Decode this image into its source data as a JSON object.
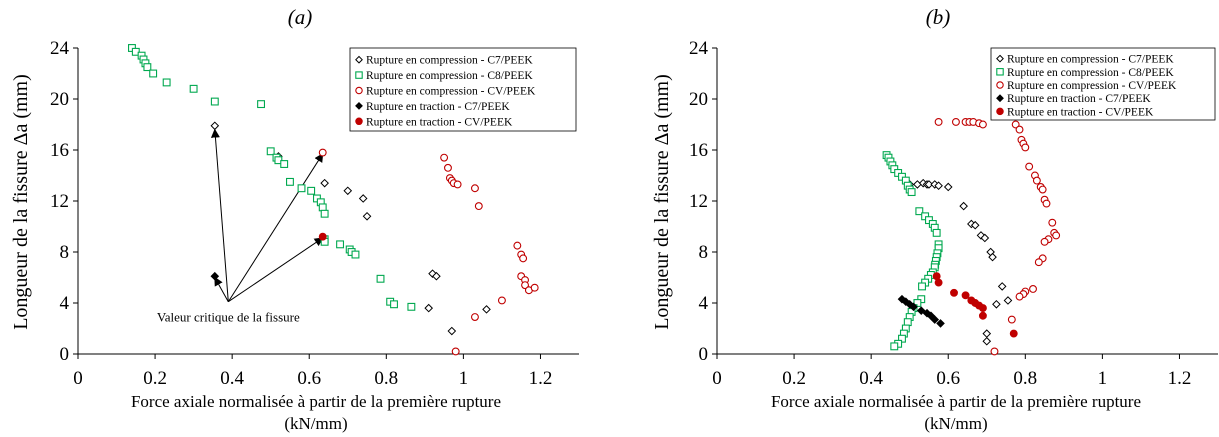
{
  "chart_data": [
    {
      "type": "scatter",
      "panel_label": "(a)",
      "ylabel": "Longueur de la fissure Δa (mm)",
      "xlabel_line1": "Force axiale normalisée à partir de la première rupture",
      "xlabel_line2": "(kN/mm)",
      "xlim": [
        0,
        1.3
      ],
      "ylim": [
        0,
        24
      ],
      "xticks": [
        0,
        0.2,
        0.4,
        0.6,
        0.8,
        1,
        1.2
      ],
      "xtick_labels": [
        "0",
        "0.2",
        "0.4",
        "0.6",
        "0.8",
        "1",
        "1.2"
      ],
      "yticks": [
        0,
        4,
        8,
        12,
        16,
        20,
        24
      ],
      "ytick_labels": [
        "0",
        "4",
        "8",
        "12",
        "16",
        "20",
        "24"
      ],
      "legend_position": "top-right",
      "annotation": {
        "text": "Valeur critique de la fissure",
        "origin": [
          0.39,
          4.1
        ],
        "arrow_targets": [
          [
            0.355,
            17.6
          ],
          [
            0.355,
            6.0
          ],
          [
            0.635,
            15.7
          ],
          [
            0.635,
            9.1
          ]
        ]
      },
      "series": [
        {
          "name": "Rupture en compression - C7/PEEK",
          "marker": "diamond-open",
          "color": "#000000",
          "points": [
            [
              0.355,
              17.9
            ],
            [
              0.52,
              15.5
            ],
            [
              0.64,
              13.4
            ],
            [
              0.7,
              12.8
            ],
            [
              0.74,
              12.2
            ],
            [
              0.75,
              10.8
            ],
            [
              0.92,
              6.3
            ],
            [
              0.93,
              6.1
            ],
            [
              0.91,
              3.6
            ],
            [
              0.97,
              1.8
            ],
            [
              1.06,
              3.5
            ]
          ]
        },
        {
          "name": "Rupture en compression -  C8/PEEK",
          "marker": "square-open",
          "color": "#00a84f",
          "points": [
            [
              0.14,
              24.0
            ],
            [
              0.15,
              23.7
            ],
            [
              0.165,
              23.4
            ],
            [
              0.17,
              23.1
            ],
            [
              0.175,
              22.8
            ],
            [
              0.18,
              22.5
            ],
            [
              0.195,
              22.0
            ],
            [
              0.23,
              21.3
            ],
            [
              0.3,
              20.8
            ],
            [
              0.355,
              19.8
            ],
            [
              0.475,
              19.6
            ],
            [
              0.5,
              15.9
            ],
            [
              0.515,
              15.4
            ],
            [
              0.52,
              15.2
            ],
            [
              0.535,
              14.9
            ],
            [
              0.55,
              13.5
            ],
            [
              0.58,
              13.0
            ],
            [
              0.605,
              12.8
            ],
            [
              0.62,
              12.2
            ],
            [
              0.63,
              11.9
            ],
            [
              0.635,
              11.5
            ],
            [
              0.64,
              11.0
            ],
            [
              0.64,
              9.0
            ],
            [
              0.64,
              8.8
            ],
            [
              0.68,
              8.6
            ],
            [
              0.705,
              8.2
            ],
            [
              0.71,
              8.0
            ],
            [
              0.72,
              7.8
            ],
            [
              0.785,
              5.9
            ],
            [
              0.81,
              4.1
            ],
            [
              0.82,
              3.9
            ],
            [
              0.865,
              3.7
            ]
          ]
        },
        {
          "name": "Rupture en compression - CV/PEEK",
          "marker": "circle-open",
          "color": "#c00000",
          "points": [
            [
              0.635,
              15.8
            ],
            [
              0.95,
              15.4
            ],
            [
              0.96,
              14.6
            ],
            [
              0.965,
              13.8
            ],
            [
              0.97,
              13.6
            ],
            [
              0.975,
              13.4
            ],
            [
              0.985,
              13.3
            ],
            [
              1.03,
              13.0
            ],
            [
              1.04,
              11.6
            ],
            [
              1.14,
              8.5
            ],
            [
              1.15,
              7.8
            ],
            [
              1.155,
              7.5
            ],
            [
              1.15,
              6.1
            ],
            [
              1.16,
              5.8
            ],
            [
              1.16,
              5.4
            ],
            [
              1.17,
              5.0
            ],
            [
              1.185,
              5.2
            ],
            [
              1.1,
              4.2
            ],
            [
              1.03,
              2.9
            ],
            [
              0.98,
              0.2
            ]
          ]
        },
        {
          "name": "Rupture en traction - C7/PEEK",
          "marker": "diamond-filled",
          "color": "#000000",
          "points": [
            [
              0.355,
              6.1
            ]
          ]
        },
        {
          "name": "Rupture en traction - CV/PEEK",
          "marker": "circle-filled",
          "color": "#c00000",
          "points": [
            [
              0.635,
              9.2
            ]
          ]
        }
      ]
    },
    {
      "type": "scatter",
      "panel_label": "(b)",
      "ylabel": "Longueur de la fissure Δa (mm)",
      "xlabel_line1": "Force axiale normalisée à partir de la première rupture",
      "xlabel_line2": "(kN/mm)",
      "xlim": [
        0,
        1.3
      ],
      "ylim": [
        0,
        24
      ],
      "xticks": [
        0,
        0.2,
        0.4,
        0.6,
        0.8,
        1,
        1.2
      ],
      "xtick_labels": [
        "0",
        "0.2",
        "0.4",
        "0.6",
        "0.8",
        "1",
        "1.2"
      ],
      "yticks": [
        0,
        4,
        8,
        12,
        16,
        20,
        24
      ],
      "ytick_labels": [
        "0",
        "4",
        "8",
        "12",
        "16",
        "20",
        "24"
      ],
      "legend_position": "top-right",
      "series": [
        {
          "name": "Rupture en compression - C7/PEEK",
          "marker": "diamond-open",
          "color": "#000000",
          "points": [
            [
              0.5,
              13.3
            ],
            [
              0.52,
              13.3
            ],
            [
              0.535,
              13.4
            ],
            [
              0.545,
              13.3
            ],
            [
              0.55,
              13.3
            ],
            [
              0.565,
              13.3
            ],
            [
              0.575,
              13.2
            ],
            [
              0.6,
              13.1
            ],
            [
              0.64,
              11.6
            ],
            [
              0.66,
              10.2
            ],
            [
              0.67,
              10.1
            ],
            [
              0.685,
              9.3
            ],
            [
              0.695,
              9.1
            ],
            [
              0.71,
              8.0
            ],
            [
              0.715,
              7.6
            ],
            [
              0.74,
              5.3
            ],
            [
              0.755,
              4.2
            ],
            [
              0.725,
              3.9
            ],
            [
              0.7,
              1.6
            ],
            [
              0.7,
              1.0
            ]
          ]
        },
        {
          "name": "Rupture en compression -  C8/PEEK",
          "marker": "square-open",
          "color": "#00a84f",
          "points": [
            [
              0.44,
              15.6
            ],
            [
              0.445,
              15.4
            ],
            [
              0.45,
              15.1
            ],
            [
              0.455,
              14.8
            ],
            [
              0.46,
              14.5
            ],
            [
              0.47,
              14.2
            ],
            [
              0.48,
              13.9
            ],
            [
              0.49,
              13.6
            ],
            [
              0.495,
              13.2
            ],
            [
              0.5,
              12.9
            ],
            [
              0.505,
              12.7
            ],
            [
              0.525,
              11.2
            ],
            [
              0.54,
              10.8
            ],
            [
              0.55,
              10.5
            ],
            [
              0.56,
              10.2
            ],
            [
              0.565,
              9.9
            ],
            [
              0.57,
              9.5
            ],
            [
              0.575,
              8.6
            ],
            [
              0.575,
              8.3
            ],
            [
              0.572,
              7.9
            ],
            [
              0.57,
              7.6
            ],
            [
              0.568,
              7.3
            ],
            [
              0.566,
              7.0
            ],
            [
              0.565,
              6.8
            ],
            [
              0.56,
              6.4
            ],
            [
              0.555,
              6.2
            ],
            [
              0.548,
              5.9
            ],
            [
              0.54,
              5.6
            ],
            [
              0.532,
              5.3
            ],
            [
              0.53,
              4.3
            ],
            [
              0.52,
              4.0
            ],
            [
              0.51,
              3.6
            ],
            [
              0.505,
              3.3
            ],
            [
              0.5,
              2.9
            ],
            [
              0.495,
              2.5
            ],
            [
              0.49,
              2.0
            ],
            [
              0.485,
              1.6
            ],
            [
              0.48,
              1.2
            ],
            [
              0.47,
              0.8
            ],
            [
              0.46,
              0.6
            ]
          ]
        },
        {
          "name": "Rupture en compression - CV/PEEK",
          "marker": "circle-open",
          "color": "#c00000",
          "points": [
            [
              0.575,
              18.2
            ],
            [
              0.62,
              18.2
            ],
            [
              0.645,
              18.2
            ],
            [
              0.655,
              18.2
            ],
            [
              0.665,
              18.2
            ],
            [
              0.68,
              18.1
            ],
            [
              0.69,
              18.0
            ],
            [
              0.775,
              18.0
            ],
            [
              0.785,
              17.6
            ],
            [
              0.79,
              16.8
            ],
            [
              0.795,
              16.5
            ],
            [
              0.8,
              16.2
            ],
            [
              0.81,
              14.7
            ],
            [
              0.825,
              14.0
            ],
            [
              0.83,
              13.6
            ],
            [
              0.84,
              13.1
            ],
            [
              0.845,
              12.9
            ],
            [
              0.85,
              12.1
            ],
            [
              0.855,
              11.8
            ],
            [
              0.87,
              10.3
            ],
            [
              0.875,
              9.5
            ],
            [
              0.88,
              9.3
            ],
            [
              0.86,
              9.0
            ],
            [
              0.85,
              8.8
            ],
            [
              0.845,
              7.5
            ],
            [
              0.835,
              7.2
            ],
            [
              0.82,
              5.1
            ],
            [
              0.8,
              4.9
            ],
            [
              0.795,
              4.7
            ],
            [
              0.785,
              4.5
            ],
            [
              0.765,
              2.7
            ],
            [
              0.72,
              0.2
            ]
          ]
        },
        {
          "name": "Rupture en traction - C7/PEEK",
          "marker": "diamond-filled",
          "color": "#000000",
          "points": [
            [
              0.48,
              4.3
            ],
            [
              0.49,
              4.1
            ],
            [
              0.5,
              3.9
            ],
            [
              0.51,
              3.7
            ],
            [
              0.53,
              3.4
            ],
            [
              0.545,
              3.2
            ],
            [
              0.555,
              3.0
            ],
            [
              0.565,
              2.7
            ],
            [
              0.58,
              2.4
            ]
          ]
        },
        {
          "name": "Rupture en traction -  CV/PEEK",
          "marker": "circle-filled",
          "color": "#c00000",
          "points": [
            [
              0.57,
              6.1
            ],
            [
              0.575,
              5.6
            ],
            [
              0.615,
              4.8
            ],
            [
              0.645,
              4.6
            ],
            [
              0.66,
              4.2
            ],
            [
              0.67,
              4.0
            ],
            [
              0.68,
              3.8
            ],
            [
              0.69,
              3.6
            ],
            [
              0.69,
              3.0
            ],
            [
              0.77,
              1.6
            ]
          ]
        }
      ]
    }
  ]
}
